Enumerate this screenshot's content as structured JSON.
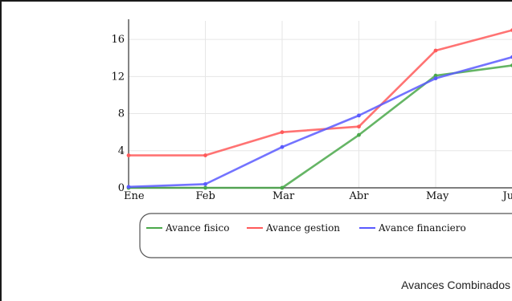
{
  "chart_data": {
    "type": "line",
    "categories": [
      "Ene",
      "Feb",
      "Mar",
      "Abr",
      "May",
      "Jun"
    ],
    "ylim": [
      0,
      18
    ],
    "yticks": [
      0,
      4,
      8,
      12,
      16
    ],
    "grid": true,
    "legend_position": "bottom",
    "series": [
      {
        "name": "Avance fisico",
        "color": "#4aa84a",
        "values": [
          0,
          0,
          0,
          5.7,
          12.1,
          13.2
        ]
      },
      {
        "name": "Avance gestion",
        "color": "#ff5a5a",
        "values": [
          3.5,
          3.5,
          6.0,
          6.6,
          14.8,
          17.0
        ]
      },
      {
        "name": "Avance financiero",
        "color": "#5a5aff",
        "values": [
          0.1,
          0.4,
          4.4,
          7.8,
          11.8,
          14.1
        ]
      }
    ]
  },
  "footer": {
    "title": "Avances Combinados"
  }
}
